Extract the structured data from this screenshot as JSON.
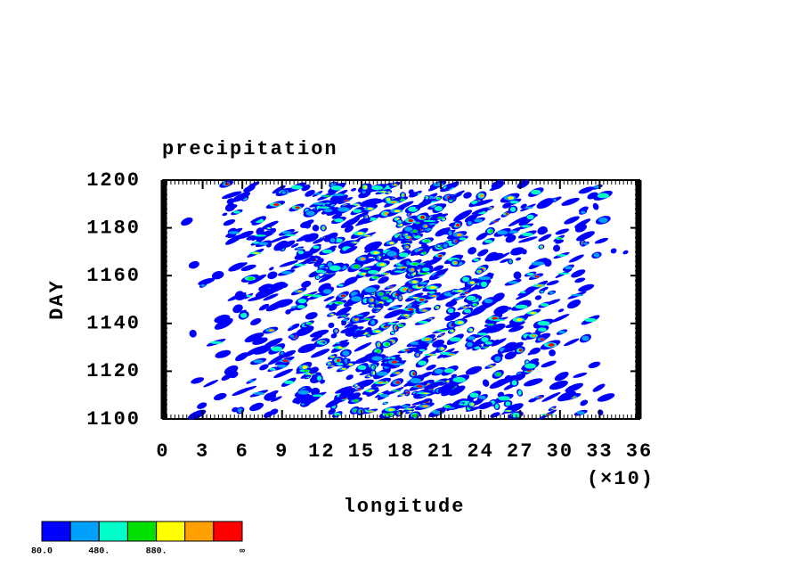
{
  "chart_data": {
    "type": "hovmoller",
    "title": "precipitation",
    "x_label": "longitude",
    "x_scale_note": "(×10)",
    "y_label": "DAY",
    "xlim": [
      0,
      360
    ],
    "xticks": [
      {
        "value": 0,
        "label": "0"
      },
      {
        "value": 30,
        "label": "3"
      },
      {
        "value": 60,
        "label": "6"
      },
      {
        "value": 90,
        "label": "9"
      },
      {
        "value": 120,
        "label": "12"
      },
      {
        "value": 150,
        "label": "15"
      },
      {
        "value": 180,
        "label": "18"
      },
      {
        "value": 210,
        "label": "21"
      },
      {
        "value": 240,
        "label": "24"
      },
      {
        "value": 270,
        "label": "27"
      },
      {
        "value": 300,
        "label": "30"
      },
      {
        "value": 330,
        "label": "33"
      },
      {
        "value": 360,
        "label": "36"
      }
    ],
    "ylim": [
      1100,
      1200
    ],
    "yticks": [
      1100,
      1120,
      1140,
      1160,
      1180,
      1200
    ],
    "colorbar": {
      "colors": [
        "#0000ff",
        "#00a0ff",
        "#00ffc8",
        "#00e000",
        "#ffff00",
        "#ffa000",
        "#ff0000"
      ],
      "lim": [
        80,
        1480
      ],
      "ticks": [
        {
          "value": 80,
          "label": "80.0"
        },
        {
          "value": 480,
          "label": "480."
        },
        {
          "value": 880,
          "label": "880."
        }
      ],
      "end_label": "∞"
    }
  }
}
